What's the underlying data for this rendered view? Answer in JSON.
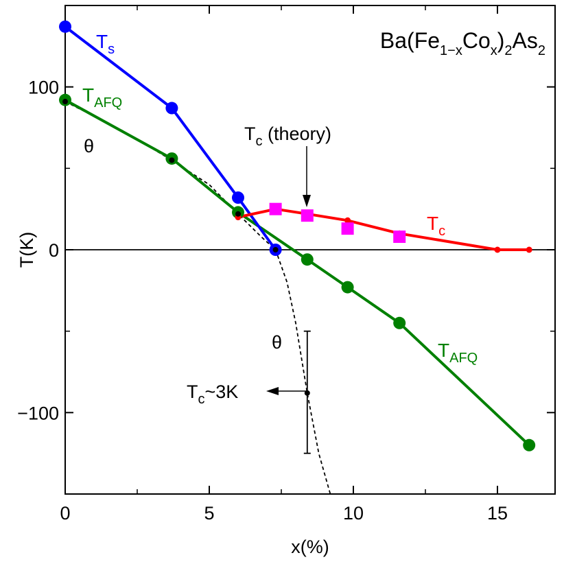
{
  "chart_data": {
    "type": "line",
    "title_parts": {
      "base": "Ba(Fe",
      "sub1": "1−x",
      "mid": "Co",
      "sub2": "x",
      "close": ")",
      "sub3": "2",
      "tail": "As",
      "sub4": "2"
    },
    "xlabel": "x(%)",
    "ylabel": "T(K)",
    "xlim": [
      0,
      17
    ],
    "ylim": [
      -150,
      150
    ],
    "xticks": [
      0,
      5,
      10,
      15
    ],
    "yticks": [
      -100,
      0,
      100
    ],
    "x_minor_ticks": [
      2.5,
      7.5,
      12.5
    ],
    "y_minor_ticks": [
      -50,
      50
    ],
    "grid": false,
    "zero_line": true,
    "series": [
      {
        "key": "ts",
        "color": "#0000ff",
        "label_main": "T",
        "label_sub": "s",
        "points": [
          {
            "x": 0,
            "y": 137
          },
          {
            "x": 3.7,
            "y": 87
          },
          {
            "x": 6.0,
            "y": 32
          },
          {
            "x": 7.3,
            "y": 0
          }
        ]
      },
      {
        "key": "tafq",
        "color": "#008000",
        "label_main": "T",
        "label_sub": "AFQ",
        "points": [
          {
            "x": 0,
            "y": 92
          },
          {
            "x": 3.7,
            "y": 56
          },
          {
            "x": 6.0,
            "y": 23
          },
          {
            "x": 8.4,
            "y": -6
          },
          {
            "x": 9.8,
            "y": -23
          },
          {
            "x": 11.6,
            "y": -45
          },
          {
            "x": 16.1,
            "y": -120
          }
        ]
      },
      {
        "key": "tc",
        "color": "#ff0000",
        "label_main": "T",
        "label_sub": "c",
        "points": [
          {
            "x": 6.0,
            "y": 20
          },
          {
            "x": 7.3,
            "y": 25
          },
          {
            "x": 8.4,
            "y": 22
          },
          {
            "x": 9.8,
            "y": 18
          },
          {
            "x": 11.6,
            "y": 10
          },
          {
            "x": 15.0,
            "y": 0
          },
          {
            "x": 16.1,
            "y": 0
          }
        ]
      },
      {
        "key": "tc_theory",
        "color": "#ff00ff",
        "marker": "square",
        "points": [
          {
            "x": 7.3,
            "y": 25
          },
          {
            "x": 8.4,
            "y": 21
          },
          {
            "x": 9.8,
            "y": 13
          },
          {
            "x": 11.6,
            "y": 8
          }
        ]
      },
      {
        "key": "theta",
        "color": "#000000",
        "style": "dashed",
        "label_main": "θ",
        "markers": [
          {
            "x": 0,
            "y": 91
          },
          {
            "x": 3.7,
            "y": 55
          },
          {
            "x": 6.0,
            "y": 22
          },
          {
            "x": 7.3,
            "y": 0
          },
          {
            "x": 8.4,
            "y": -88
          }
        ],
        "curve": [
          {
            "x": 0,
            "y": 91
          },
          {
            "x": 2.0,
            "y": 73
          },
          {
            "x": 3.7,
            "y": 55
          },
          {
            "x": 5.0,
            "y": 40
          },
          {
            "x": 6.0,
            "y": 22
          },
          {
            "x": 6.8,
            "y": 8
          },
          {
            "x": 7.3,
            "y": 0
          },
          {
            "x": 7.7,
            "y": -20
          },
          {
            "x": 8.0,
            "y": -45
          },
          {
            "x": 8.4,
            "y": -88
          },
          {
            "x": 8.8,
            "y": -125
          },
          {
            "x": 9.2,
            "y": -150
          }
        ]
      }
    ],
    "error_bar": {
      "x": 8.4,
      "y": -88,
      "low": -125,
      "high": -50
    },
    "annotations": {
      "tc_theory_main": "T",
      "tc_theory_sub": "c",
      "tc_theory_rest": " (theory)",
      "tc3k_main": "T",
      "tc3k_sub": "c",
      "tc3k_rest": "~3K",
      "theta_upper": "θ",
      "theta_lower": "θ"
    }
  }
}
